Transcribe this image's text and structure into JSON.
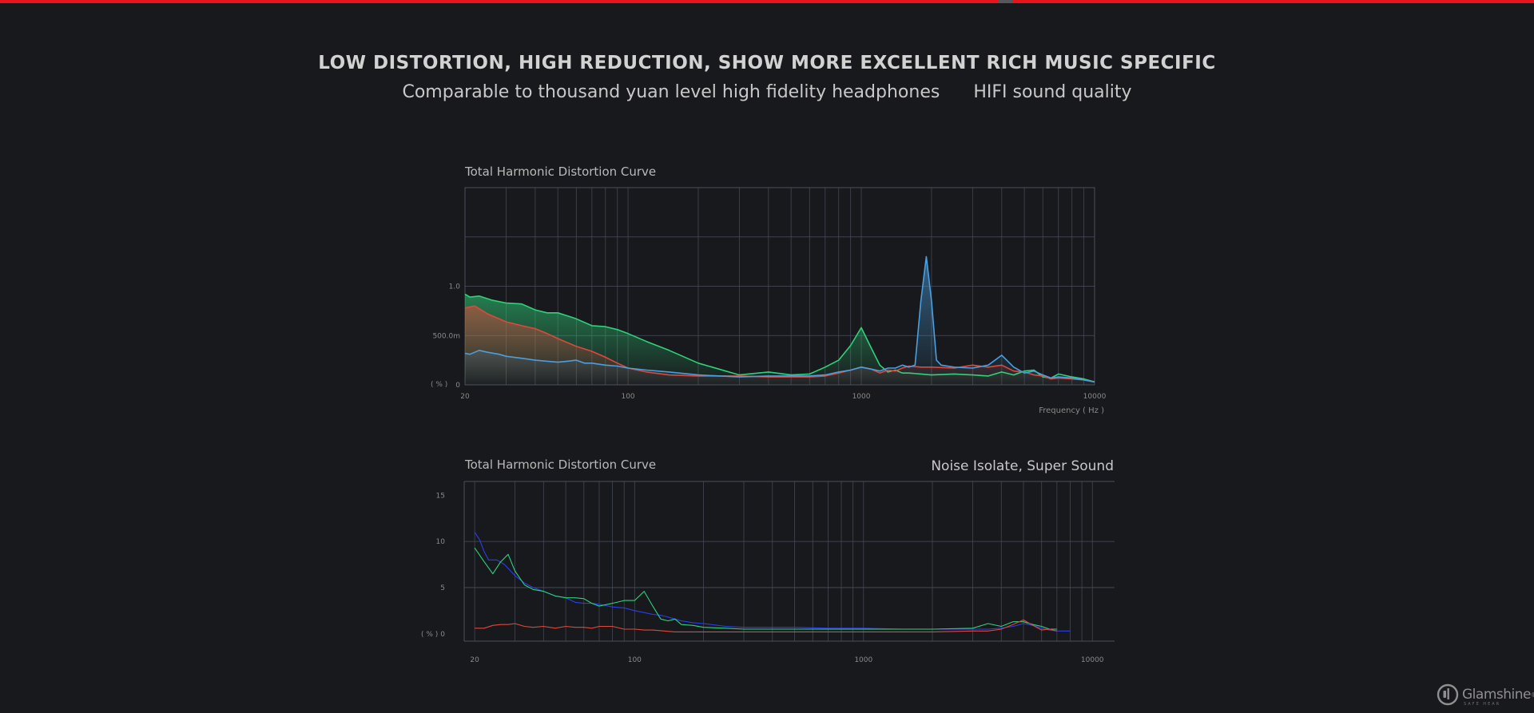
{
  "header": {
    "headline": "LOW DISTORTION, HIGH REDUCTION, SHOW MORE EXCELLENT RICH MUSIC SPECIFIC",
    "subline_left": "Comparable to thousand yuan level high fidelity headphones",
    "subline_right": "HIFI sound quality"
  },
  "brand": {
    "name": "Glamshine",
    "mark": "®",
    "tagline": "SAFE HEAR"
  },
  "colors": {
    "green": "#2fd27a",
    "red": "#e0483c",
    "blue": "#4a9fe0",
    "deep_blue": "#2b3ff0",
    "grid": "#4a4f5c"
  },
  "chart_data": [
    {
      "type": "area",
      "title": "Total Harmonic Distortion Curve",
      "xlabel": "Frequency ( Hz )",
      "ylabel": "( % )",
      "x_scale": "log",
      "xlim": [
        20,
        10000
      ],
      "ylim": [
        0,
        2.0
      ],
      "x_tick_labels": [
        "20",
        "100",
        "1000",
        "10000"
      ],
      "y_tick_labels": [
        "0",
        "500.0m",
        "1.0"
      ],
      "grid": true,
      "series": [
        {
          "color": "green",
          "x": [
            20,
            21,
            23,
            26,
            30,
            35,
            40,
            45,
            50,
            55,
            60,
            70,
            80,
            90,
            100,
            120,
            150,
            200,
            300,
            400,
            500,
            600,
            700,
            800,
            900,
            1000,
            1100,
            1200,
            1300,
            1400,
            1500,
            1600,
            1800,
            2000,
            2500,
            3000,
            3500,
            4000,
            4500,
            5000,
            5500,
            6000,
            6500,
            7000,
            8000,
            9000,
            10000
          ],
          "y": [
            0.92,
            0.89,
            0.9,
            0.86,
            0.83,
            0.82,
            0.76,
            0.73,
            0.73,
            0.7,
            0.67,
            0.6,
            0.59,
            0.56,
            0.52,
            0.44,
            0.35,
            0.22,
            0.1,
            0.13,
            0.1,
            0.11,
            0.18,
            0.25,
            0.4,
            0.58,
            0.38,
            0.2,
            0.13,
            0.15,
            0.12,
            0.12,
            0.11,
            0.1,
            0.11,
            0.1,
            0.09,
            0.13,
            0.1,
            0.14,
            0.15,
            0.08,
            0.07,
            0.11,
            0.08,
            0.06,
            0.03
          ]
        },
        {
          "color": "red",
          "x": [
            20,
            22,
            25,
            30,
            35,
            40,
            45,
            50,
            60,
            70,
            80,
            90,
            100,
            120,
            150,
            200,
            300,
            400,
            500,
            600,
            700,
            800,
            900,
            1000,
            1100,
            1200,
            1300,
            1400,
            1500,
            1600,
            1800,
            2000,
            2500,
            3000,
            3500,
            4000,
            4500,
            5000,
            5500,
            6000,
            6500,
            7000,
            8000,
            9000,
            10000
          ],
          "y": [
            0.78,
            0.8,
            0.72,
            0.64,
            0.6,
            0.57,
            0.52,
            0.47,
            0.39,
            0.34,
            0.28,
            0.22,
            0.17,
            0.13,
            0.1,
            0.09,
            0.09,
            0.08,
            0.08,
            0.08,
            0.09,
            0.12,
            0.15,
            0.18,
            0.16,
            0.12,
            0.15,
            0.14,
            0.17,
            0.19,
            0.18,
            0.18,
            0.17,
            0.2,
            0.18,
            0.2,
            0.14,
            0.13,
            0.1,
            0.09,
            0.06,
            0.07,
            0.06,
            0.05,
            0.03
          ]
        },
        {
          "color": "blue",
          "x": [
            20,
            21,
            22,
            23,
            25,
            28,
            30,
            35,
            40,
            45,
            50,
            55,
            60,
            65,
            70,
            80,
            90,
            100,
            120,
            150,
            200,
            300,
            400,
            500,
            600,
            700,
            800,
            900,
            1000,
            1100,
            1200,
            1300,
            1400,
            1500,
            1600,
            1700,
            1800,
            1900,
            2000,
            2100,
            2200,
            2500,
            3000,
            3500,
            4000,
            4500,
            5000,
            5500,
            6000,
            6500,
            7000,
            8000,
            9000,
            10000
          ],
          "y": [
            0.32,
            0.31,
            0.33,
            0.35,
            0.33,
            0.31,
            0.29,
            0.27,
            0.25,
            0.24,
            0.23,
            0.24,
            0.25,
            0.22,
            0.22,
            0.2,
            0.19,
            0.17,
            0.15,
            0.13,
            0.1,
            0.08,
            0.09,
            0.09,
            0.09,
            0.1,
            0.13,
            0.15,
            0.18,
            0.16,
            0.14,
            0.17,
            0.17,
            0.2,
            0.18,
            0.2,
            0.85,
            1.3,
            0.85,
            0.25,
            0.2,
            0.18,
            0.17,
            0.2,
            0.3,
            0.18,
            0.12,
            0.14,
            0.1,
            0.07,
            0.08,
            0.07,
            0.05,
            0.03
          ]
        }
      ]
    },
    {
      "type": "line",
      "title": "Total Harmonic Distortion Curve",
      "annotation": "Noise Isolate, Super Sound",
      "ylabel": "( % )",
      "x_scale": "log",
      "xlim": [
        18,
        12500
      ],
      "ylim": [
        -0.8,
        16.5
      ],
      "x_tick_labels": [
        "20",
        "100",
        "1000",
        "10000"
      ],
      "y_tick_labels": [
        "0",
        "5",
        "10",
        "15"
      ],
      "grid": true,
      "series": [
        {
          "color": "deep_blue",
          "x": [
            20,
            21,
            22,
            23,
            25,
            27,
            30,
            33,
            36,
            40,
            45,
            50,
            55,
            60,
            65,
            70,
            80,
            90,
            100,
            110,
            120,
            130,
            140,
            150,
            160,
            180,
            200,
            250,
            300,
            400,
            500,
            700,
            1000,
            1500,
            2000,
            3000,
            3500,
            4000,
            4500,
            5000,
            5500,
            6000,
            6500,
            7000,
            8000
          ],
          "y": [
            11.0,
            10.2,
            8.9,
            8.0,
            8.0,
            7.5,
            6.3,
            5.5,
            5.0,
            4.6,
            4.1,
            3.9,
            3.4,
            3.3,
            3.3,
            3.2,
            2.9,
            2.8,
            2.5,
            2.3,
            2.1,
            2.0,
            1.8,
            1.6,
            1.4,
            1.2,
            1.1,
            0.8,
            0.7,
            0.7,
            0.7,
            0.6,
            0.6,
            0.5,
            0.5,
            0.5,
            0.5,
            0.6,
            0.8,
            1.1,
            0.9,
            0.6,
            0.4,
            0.3,
            0.3
          ]
        },
        {
          "color": "green",
          "x": [
            20,
            22,
            24,
            26,
            28,
            30,
            33,
            36,
            40,
            45,
            50,
            55,
            60,
            65,
            70,
            80,
            90,
            100,
            110,
            120,
            130,
            140,
            150,
            160,
            180,
            200,
            250,
            300,
            400,
            500,
            700,
            1000,
            1500,
            2000,
            3000,
            3500,
            4000,
            4500,
            5000,
            5500,
            6000,
            6500,
            7000
          ],
          "y": [
            9.3,
            7.8,
            6.5,
            7.8,
            8.6,
            6.8,
            5.3,
            4.8,
            4.6,
            4.1,
            3.9,
            3.9,
            3.8,
            3.3,
            3.0,
            3.3,
            3.6,
            3.6,
            4.6,
            3.0,
            1.6,
            1.4,
            1.6,
            1.0,
            0.9,
            0.7,
            0.6,
            0.5,
            0.5,
            0.5,
            0.5,
            0.5,
            0.5,
            0.5,
            0.6,
            1.1,
            0.8,
            1.3,
            1.3,
            1.0,
            0.8,
            0.5,
            0.5
          ]
        },
        {
          "color": "red",
          "x": [
            20,
            22,
            24,
            26,
            28,
            30,
            33,
            36,
            40,
            45,
            50,
            55,
            60,
            65,
            70,
            80,
            90,
            100,
            110,
            120,
            150,
            200,
            300,
            500,
            1000,
            2000,
            3000,
            3500,
            4000,
            4500,
            5000,
            5500,
            6000,
            6500,
            7000
          ],
          "y": [
            0.6,
            0.6,
            0.9,
            1.0,
            1.0,
            1.1,
            0.8,
            0.7,
            0.8,
            0.6,
            0.8,
            0.7,
            0.7,
            0.6,
            0.8,
            0.8,
            0.5,
            0.5,
            0.4,
            0.4,
            0.2,
            0.2,
            0.2,
            0.2,
            0.2,
            0.2,
            0.3,
            0.3,
            0.5,
            1.0,
            1.5,
            0.9,
            0.4,
            0.5,
            0.3
          ]
        }
      ]
    }
  ]
}
